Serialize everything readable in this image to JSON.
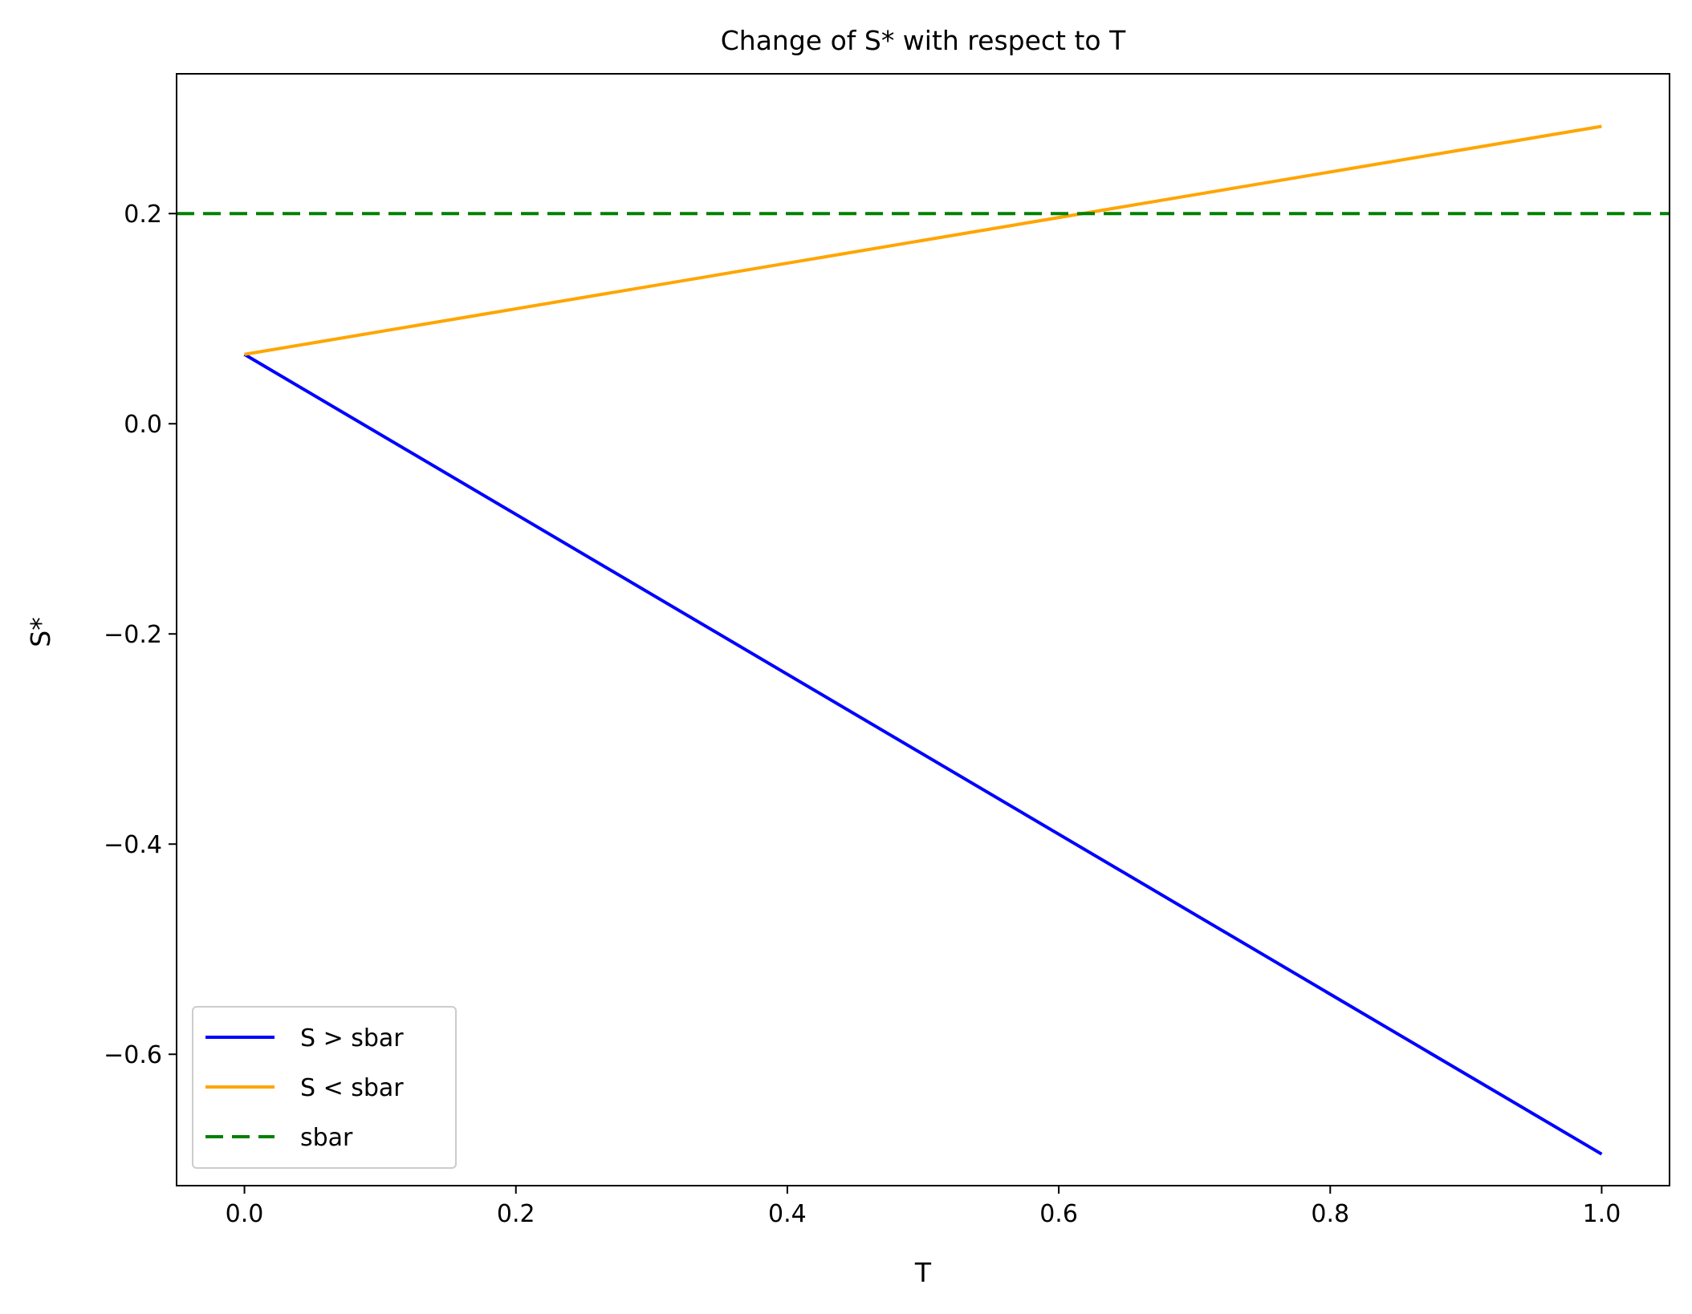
{
  "chart_data": {
    "type": "line",
    "title": "Change of S* with respect to T",
    "xlabel": "T",
    "ylabel": "S*",
    "xlim": [
      -0.05,
      1.05
    ],
    "ylim": [
      -0.725,
      0.333
    ],
    "xticks": [
      0.0,
      0.2,
      0.4,
      0.6,
      0.8,
      1.0
    ],
    "xtick_labels": [
      "0.0",
      "0.2",
      "0.4",
      "0.6",
      "0.8",
      "1.0"
    ],
    "yticks": [
      0.2,
      0.0,
      -0.2,
      -0.4,
      -0.6
    ],
    "ytick_labels": [
      "0.2",
      "0.0",
      "−0.2",
      "−0.4",
      "−0.6"
    ],
    "grid": false,
    "legend_position": "lower-left",
    "series": [
      {
        "name": "S > sbar",
        "color": "#0000ff",
        "style": "solid",
        "x": [
          0.0,
          1.0
        ],
        "y": [
          0.066,
          -0.695
        ]
      },
      {
        "name": "S < sbar",
        "color": "#ffa500",
        "style": "solid",
        "x": [
          0.0,
          1.0
        ],
        "y": [
          0.066,
          0.283
        ]
      },
      {
        "name": "sbar",
        "color": "#008000",
        "style": "dashed",
        "hline": 0.2
      }
    ]
  }
}
